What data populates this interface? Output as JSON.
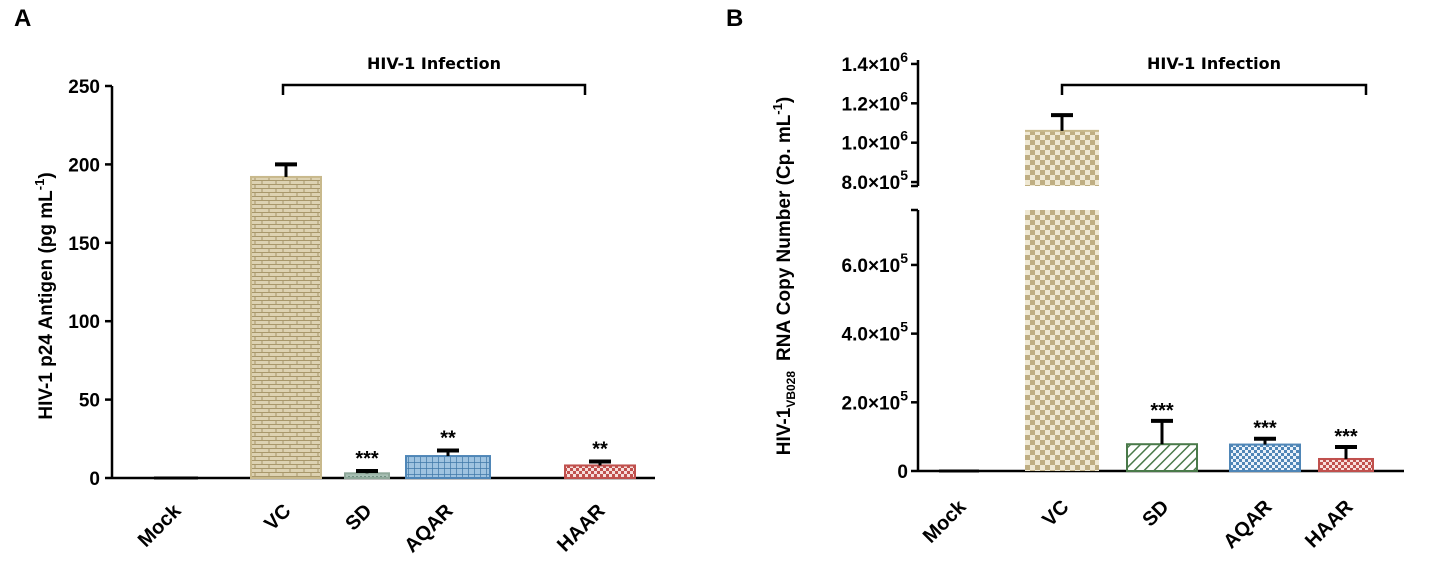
{
  "chart_data": [
    {
      "panel_label": "A",
      "type": "bar",
      "ylabel": "HIV-1 p24 Antigen (pg mL",
      "ylabel_sup": "-1",
      "ylabel_close": ")",
      "ylim": [
        0,
        250
      ],
      "yticks": [
        "0",
        "50",
        "100",
        "150",
        "200",
        "250"
      ],
      "categories": [
        "Mock",
        "VC",
        "SD",
        "AQAR",
        "HAAR"
      ],
      "values": [
        0,
        192,
        3,
        14,
        8
      ],
      "errors": [
        0,
        8,
        1.5,
        3.5,
        2.5
      ],
      "significance": [
        "",
        "",
        "***",
        "**",
        "**"
      ],
      "bracket": {
        "label": "HIV-1 Infection",
        "from": "VC",
        "to": "HAAR"
      },
      "colors": [
        "#888888",
        "#c8b98c",
        "#8fa89a",
        "#4f86b7",
        "#c0504d"
      ]
    },
    {
      "panel_label": "B",
      "type": "bar",
      "ylabel_prefix": "HIV-1",
      "ylabel_sub": "VB028",
      "ylabel": "RNA Copy Number (Cp. mL",
      "ylabel_sup": "-1",
      "ylabel_close": ")",
      "axis_break": [
        760000,
        780000
      ],
      "ylim_lower": [
        0,
        760000
      ],
      "ylim_upper": [
        780000,
        1420000
      ],
      "yticks_lower": [
        {
          "value": 0,
          "mant": "0",
          "exp": ""
        },
        {
          "value": 200000,
          "mant": "2.0×10",
          "exp": "5"
        },
        {
          "value": 400000,
          "mant": "4.0×10",
          "exp": "5"
        },
        {
          "value": 600000,
          "mant": "6.0×10",
          "exp": "5"
        }
      ],
      "yticks_upper": [
        {
          "value": 800000,
          "mant": "8.0×10",
          "exp": "5"
        },
        {
          "value": 1000000,
          "mant": "1.0×10",
          "exp": "6"
        },
        {
          "value": 1200000,
          "mant": "1.2×10",
          "exp": "6"
        },
        {
          "value": 1400000,
          "mant": "1.4×10",
          "exp": "6"
        }
      ],
      "categories": [
        "Mock",
        "VC",
        "SD",
        "AQAR",
        "HAAR"
      ],
      "values": [
        0,
        1060000,
        78000,
        77000,
        35000
      ],
      "errors": [
        0,
        80000,
        68000,
        17000,
        35000
      ],
      "significance": [
        "",
        "",
        "***",
        "***",
        "***"
      ],
      "bracket": {
        "label": "HIV-1 Infection",
        "from": "VC",
        "to": "HAAR"
      },
      "colors": [
        "#888888",
        "#c8b98c",
        "#4a7a4a",
        "#4f86b7",
        "#c0504d"
      ]
    }
  ]
}
